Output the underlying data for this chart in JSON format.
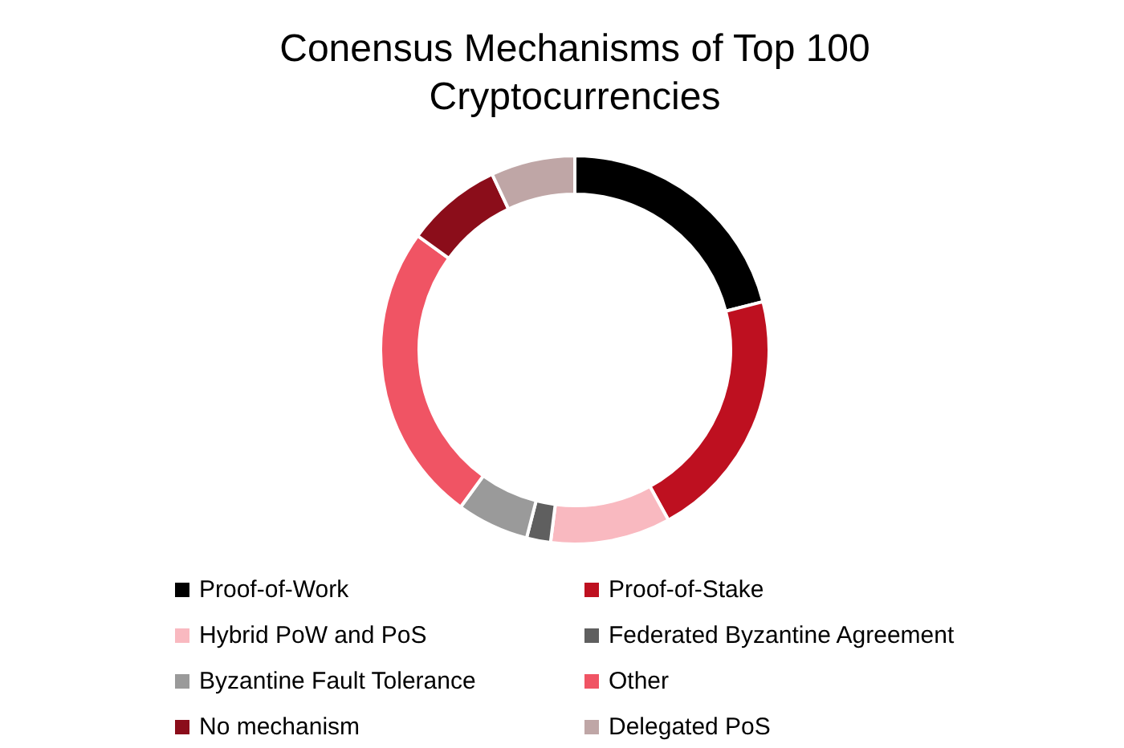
{
  "chart_data": {
    "type": "donut",
    "title": "Conensus Mechanisms of Top 100 Cryptocurrencies",
    "categories": [
      "Proof-of-Work",
      "Proof-of-Stake",
      "Hybrid PoW and PoS",
      "Federated Byzantine Agreement",
      "Byzantine Fault Tolerance",
      "Other",
      "No mechanism",
      "Delegated PoS"
    ],
    "values": [
      21,
      21,
      10,
      2,
      6,
      25,
      8,
      7
    ],
    "colors": [
      "#000000",
      "#be1020",
      "#f9b9c0",
      "#5f5f5f",
      "#9a9a9a",
      "#f05464",
      "#8b0d1a",
      "#bfa6a6"
    ],
    "legend": "bottom"
  }
}
